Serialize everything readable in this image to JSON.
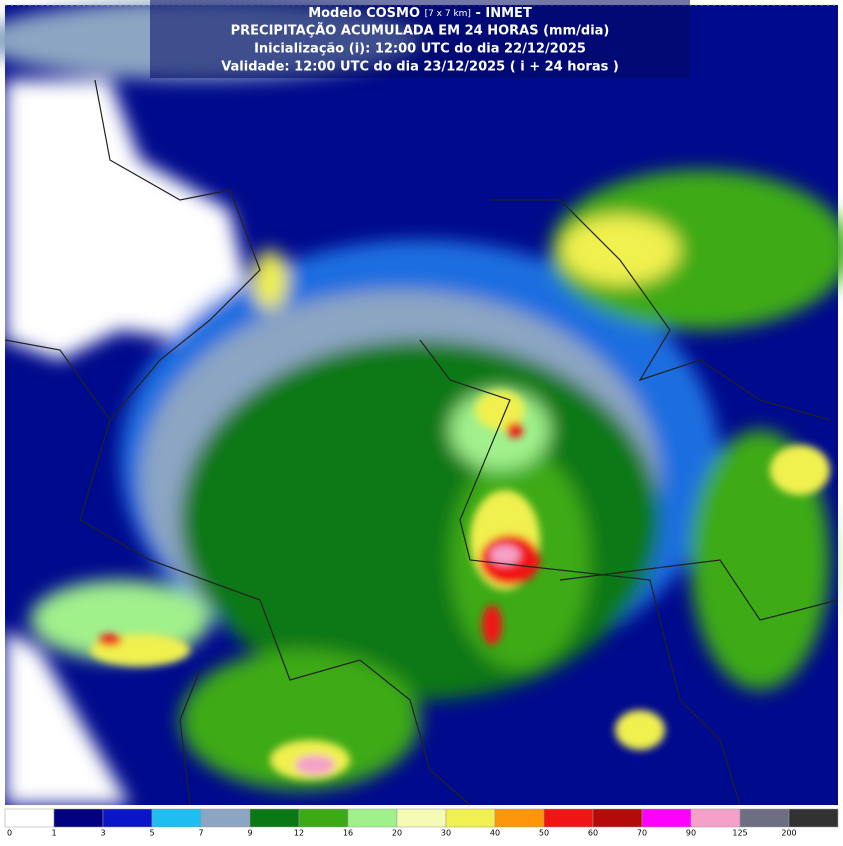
{
  "header": {
    "model": "Modelo COSMO",
    "resolution": "[7 x 7 km]",
    "source": "- INMET",
    "title": "PRECIPITAÇÃO ACUMULADA EM 24 HORAS (mm/dia)",
    "init": "Inicialização (i): 12:00 UTC do dia 22/12/2025",
    "valid": "Validade: 12:00 UTC do dia 23/12/2025 ( i + 24 horas )"
  },
  "legend": {
    "ticks": [
      0,
      1,
      3,
      5,
      7,
      9,
      12,
      16,
      20,
      30,
      40,
      50,
      60,
      70,
      90,
      125,
      200
    ],
    "colors": [
      "#ffffff",
      "#000080",
      "#0a14c8",
      "#1ebef0",
      "#8ca5c3",
      "#0a7814",
      "#3caa14",
      "#a0f08c",
      "#f5fab4",
      "#f0f050",
      "#ff960a",
      "#f01414",
      "#b40a0a",
      "#ff00ff",
      "#f5a0c8",
      "#6e6e82",
      "#323232"
    ]
  }
}
